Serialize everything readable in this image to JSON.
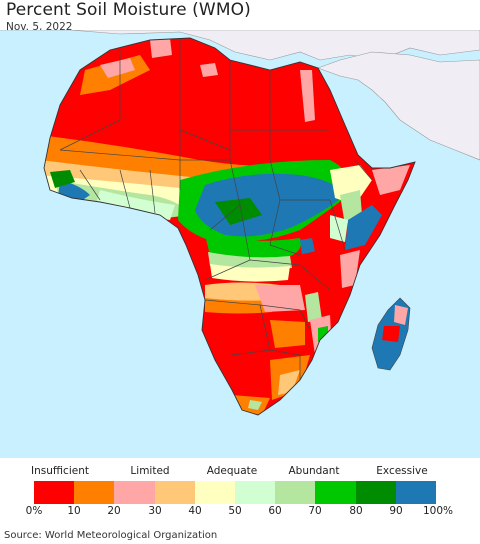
{
  "title": "Percent Soil Moisture (WMO)",
  "date": "Nov. 5, 2022",
  "source": "Source: World Meteorological Organization",
  "legend": {
    "categories": [
      "Insufficient",
      "Limited",
      "Adequate",
      "Abundant",
      "Excessive"
    ],
    "ticks": [
      "0%",
      "10",
      "20",
      "30",
      "40",
      "50",
      "60",
      "70",
      "80",
      "90",
      "100%"
    ],
    "colors": [
      "#ff0000",
      "#ff8000",
      "#ffa6a6",
      "#ffc878",
      "#ffffc0",
      "#d2ffd2",
      "#b4e6a0",
      "#00c800",
      "#008c00",
      "#1e78b4"
    ]
  },
  "map_colors": {
    "ocean": "#c8f0ff",
    "non_africa_land": "#f0eef4",
    "border": "#444444"
  }
}
